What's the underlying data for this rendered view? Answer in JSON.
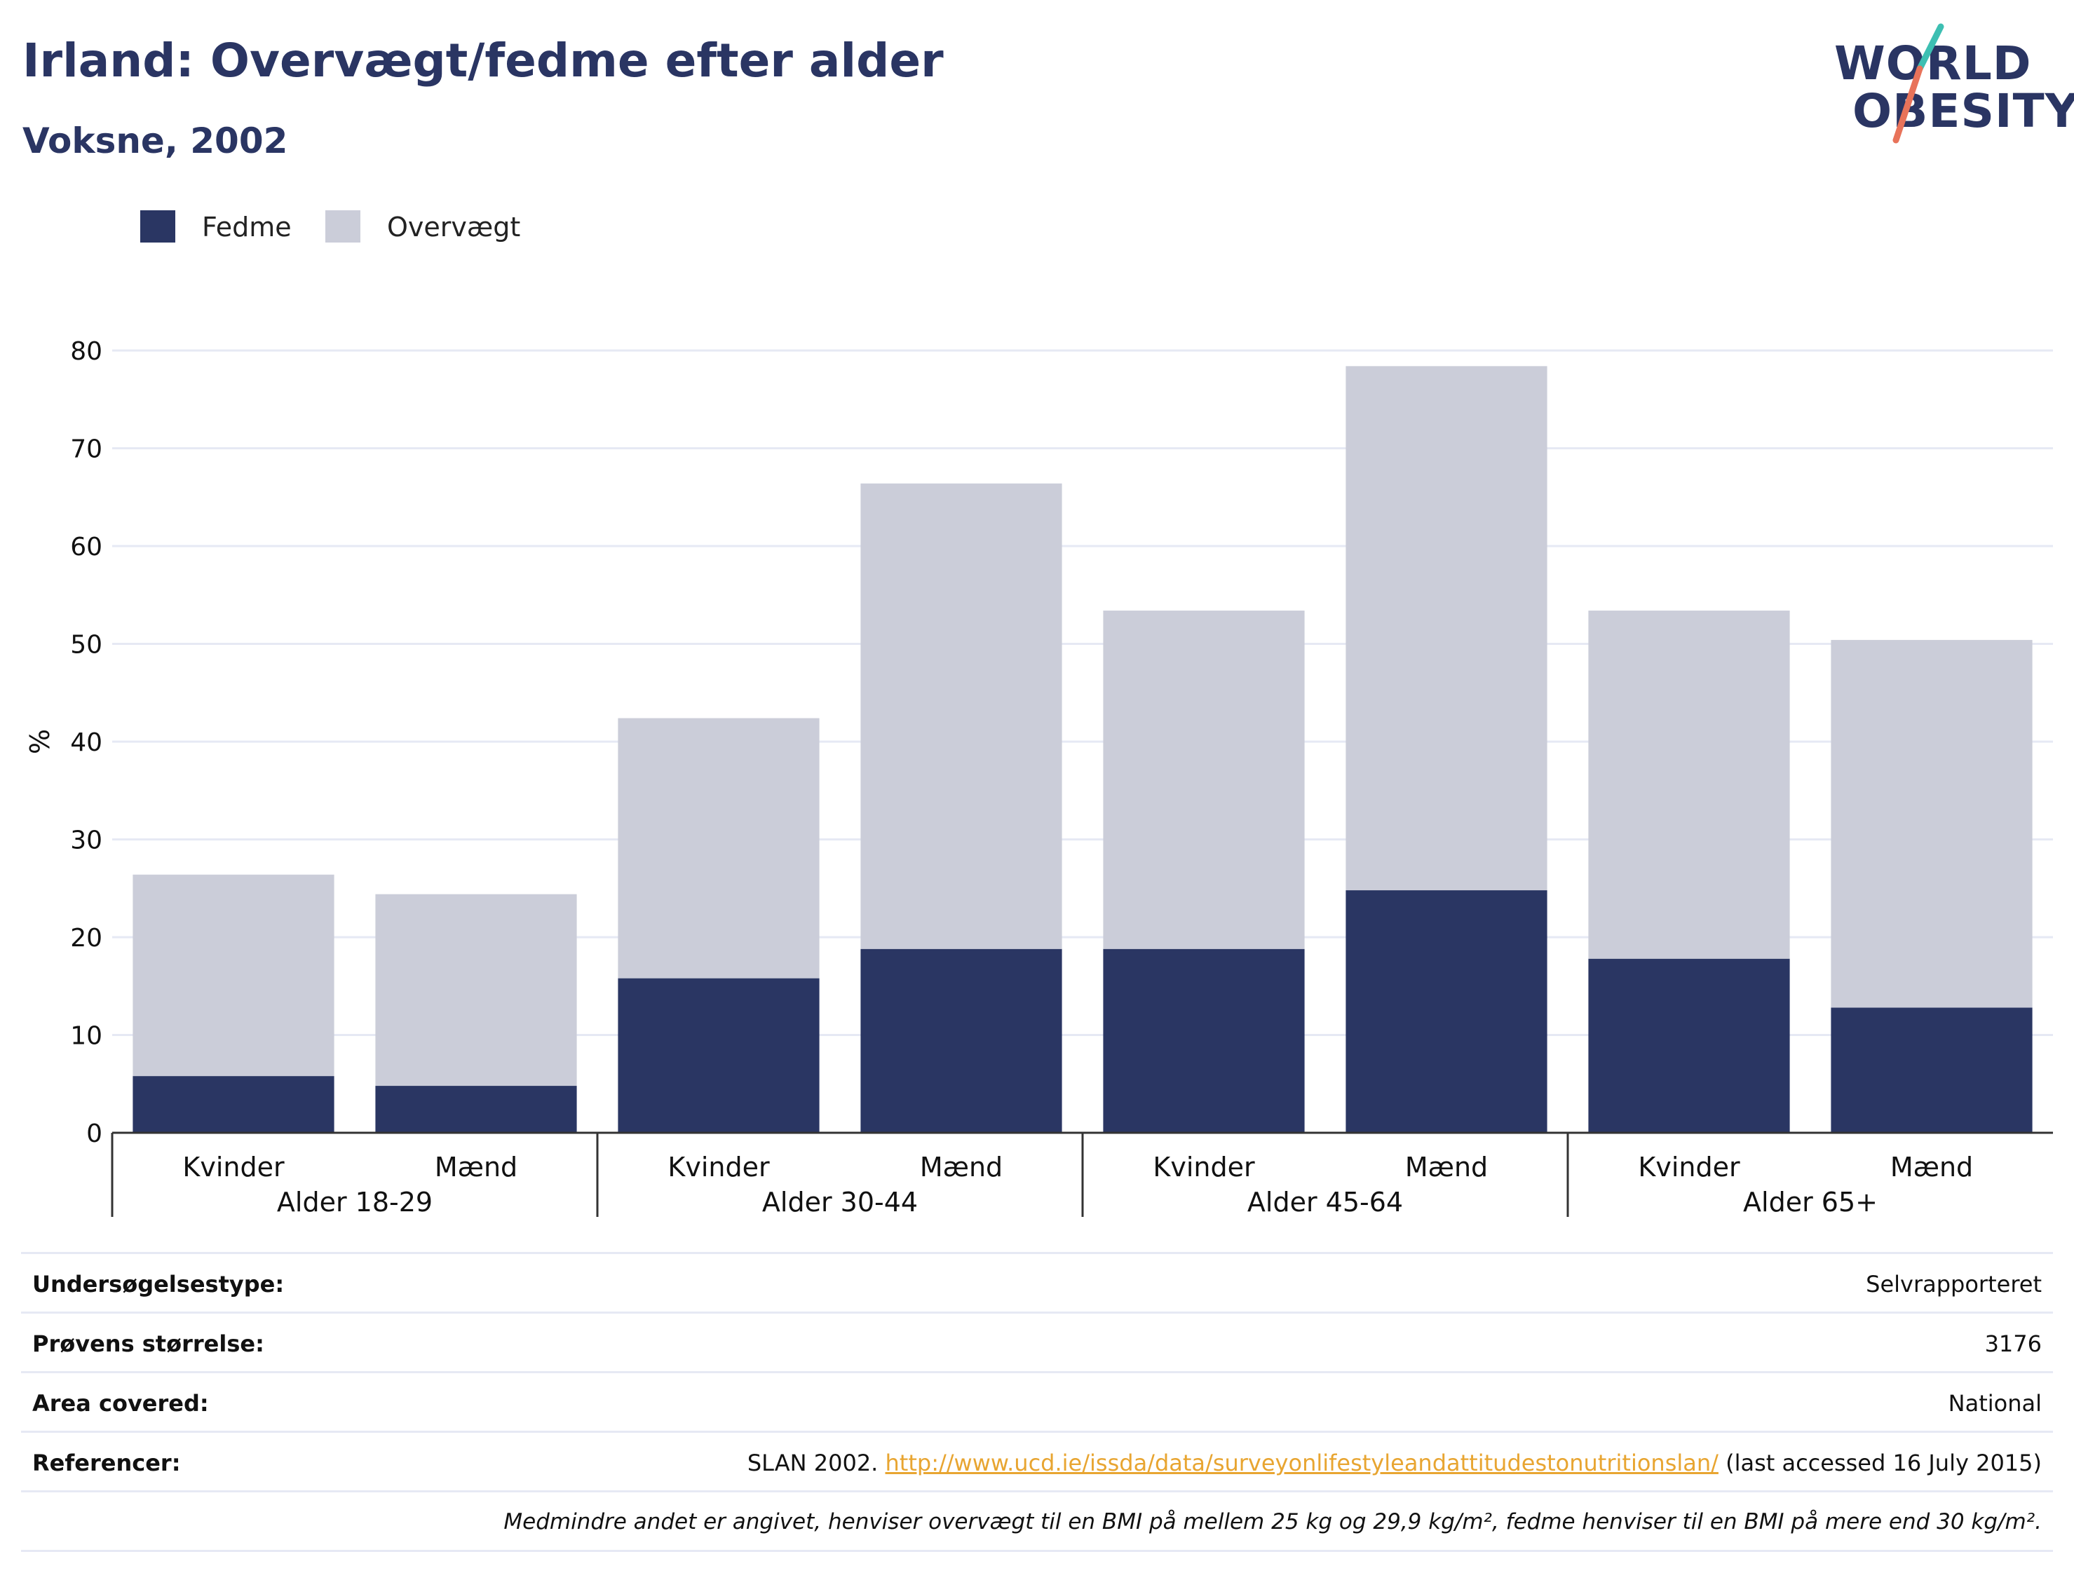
{
  "header": {
    "title": "Irland: Overvægt/fedme efter alder",
    "subtitle": "Voksne, 2002"
  },
  "logo": {
    "line1": "WORLD",
    "line2": "OBESITY",
    "text_color": "#2a3563",
    "slash_colors": [
      "#3dbfb2",
      "#e8735a"
    ]
  },
  "colors": {
    "fedme": "#2a3663",
    "overvaegt": "#cbcdd9",
    "grid": "#e6e9f4",
    "axis": "#333333",
    "link": "#e8a531"
  },
  "chart_data": {
    "type": "bar",
    "stacked": true,
    "ylabel": "%",
    "ylim": [
      0,
      80
    ],
    "yticks": [
      0,
      10,
      20,
      30,
      40,
      50,
      60,
      70,
      80
    ],
    "grid": true,
    "legend_position": "top-left",
    "groups": [
      "Alder 18-29",
      "Alder 30-44",
      "Alder 45-64",
      "Alder 65+"
    ],
    "categories": [
      "Kvinder",
      "Mænd",
      "Kvinder",
      "Mænd",
      "Kvinder",
      "Mænd",
      "Kvinder",
      "Mænd"
    ],
    "series": [
      {
        "name": "Fedme",
        "values": [
          5.8,
          4.8,
          15.8,
          18.8,
          18.8,
          24.8,
          17.8,
          12.8
        ]
      },
      {
        "name": "Overvægt",
        "values": [
          20.6,
          19.6,
          26.6,
          47.6,
          34.6,
          53.6,
          35.6,
          37.6
        ]
      }
    ]
  },
  "metadata": {
    "rows": [
      {
        "label": "Undersøgelsestype:",
        "value": "Selvrapporteret"
      },
      {
        "label": "Prøvens størrelse:",
        "value": "3176"
      },
      {
        "label": "Area covered:",
        "value": "National"
      }
    ],
    "reference": {
      "label": "Referencer:",
      "prefix": "SLAN 2002.",
      "url": "http://www.ucd.ie/issda/data/surveyonlifestyleandattitudestonutritionslan/",
      "suffix": "(last accessed 16 July 2015)"
    },
    "note": "Medmindre andet er angivet, henviser overvægt til en BMI på mellem 25 kg og 29,9 kg/m², fedme henviser til en BMI på mere end 30 kg/m²."
  }
}
